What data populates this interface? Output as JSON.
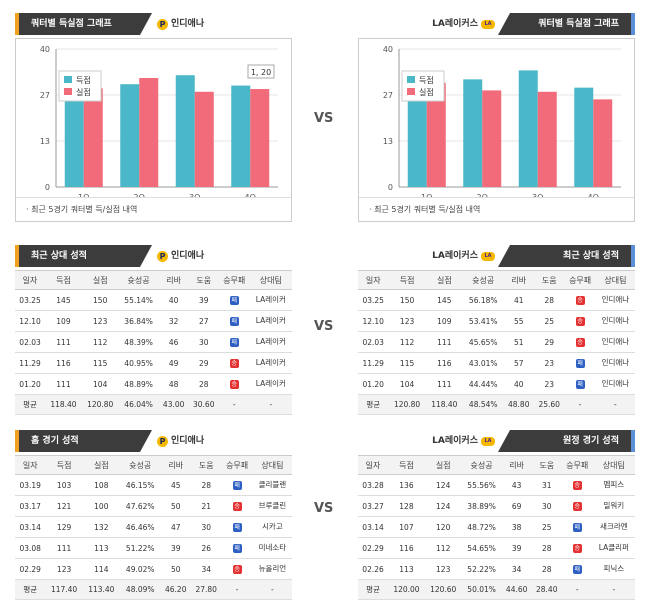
{
  "vs_label": "VS",
  "colors": {
    "score": "#4ab8c8",
    "lost": "#f26b7a",
    "lose_badge": "#2e5fc2",
    "win_badge": "#e43232"
  },
  "charts": {
    "left": {
      "title": "쿼터별 득실점 그래프",
      "team": "인디애나",
      "note": "·  최근 5경기 쿼터별 득/실점 내역",
      "tooltip": "1, 20",
      "chart_data": {
        "type": "bar",
        "categories": [
          "1Q",
          "2Q",
          "3Q",
          "4Q"
        ],
        "ylim": [
          0,
          40
        ],
        "yticks": [
          "40",
          "27",
          "13",
          "0"
        ],
        "series": [
          {
            "name": "득점",
            "values": [
              31.2,
              29.8,
              32.4,
              29.4
            ]
          },
          {
            "name": "실점",
            "values": [
              28.6,
              31.6,
              27.6,
              28.4
            ]
          }
        ]
      }
    },
    "right": {
      "title": "쿼터별 득실점 그래프",
      "team": "LA레이커스",
      "note": "·  최근 5경기 쿼터별 득/실점 내역",
      "chart_data": {
        "type": "bar",
        "categories": [
          "1Q",
          "2Q",
          "3Q",
          "4Q"
        ],
        "ylim": [
          0,
          40
        ],
        "yticks": [
          "40",
          "27",
          "13",
          "0"
        ],
        "series": [
          {
            "name": "득점",
            "values": [
              29.6,
              31.2,
              33.8,
              28.8
            ]
          },
          {
            "name": "실점",
            "values": [
              30.2,
              28.0,
              27.6,
              25.4
            ]
          }
        ]
      }
    }
  },
  "columns": [
    "일자",
    "득점",
    "실점",
    "슛성공",
    "리바",
    "도움",
    "승무패",
    "상대팀"
  ],
  "sections": {
    "recent_left": {
      "title": "최근 상대 성적",
      "team": "인디애나",
      "rows": [
        [
          "03.25",
          "145",
          "150",
          "55.14%",
          "40",
          "39",
          "패",
          "LA레이커"
        ],
        [
          "12.10",
          "109",
          "123",
          "36.84%",
          "32",
          "27",
          "패",
          "LA레이커"
        ],
        [
          "02.03",
          "111",
          "112",
          "48.39%",
          "46",
          "30",
          "패",
          "LA레이커"
        ],
        [
          "11.29",
          "116",
          "115",
          "40.95%",
          "49",
          "29",
          "승",
          "LA레이커"
        ],
        [
          "01.20",
          "111",
          "104",
          "48.89%",
          "48",
          "28",
          "승",
          "LA레이커"
        ]
      ],
      "avg": [
        "평균",
        "118.40",
        "120.80",
        "46.04%",
        "43.00",
        "30.60",
        "-",
        "-"
      ]
    },
    "recent_right": {
      "title": "최근 상대 성적",
      "team": "LA레이커스",
      "rows": [
        [
          "03.25",
          "150",
          "145",
          "56.18%",
          "41",
          "28",
          "승",
          "인디애나"
        ],
        [
          "12.10",
          "123",
          "109",
          "53.41%",
          "55",
          "25",
          "승",
          "인디애나"
        ],
        [
          "02.03",
          "112",
          "111",
          "45.65%",
          "51",
          "29",
          "승",
          "인디애나"
        ],
        [
          "11.29",
          "115",
          "116",
          "43.01%",
          "57",
          "23",
          "패",
          "인디애나"
        ],
        [
          "01.20",
          "104",
          "111",
          "44.44%",
          "40",
          "23",
          "패",
          "인디애나"
        ]
      ],
      "avg": [
        "평균",
        "120.80",
        "118.40",
        "48.54%",
        "48.80",
        "25.60",
        "-",
        "-"
      ]
    },
    "home_left": {
      "title": "홈 경기 성적",
      "team": "인디애나",
      "rows": [
        [
          "03.19",
          "103",
          "108",
          "46.15%",
          "45",
          "28",
          "패",
          "클리블랜"
        ],
        [
          "03.17",
          "121",
          "100",
          "47.62%",
          "50",
          "21",
          "승",
          "브루클린"
        ],
        [
          "03.14",
          "129",
          "132",
          "46.46%",
          "47",
          "30",
          "패",
          "시카고"
        ],
        [
          "03.08",
          "111",
          "113",
          "51.22%",
          "39",
          "26",
          "패",
          "미네소타"
        ],
        [
          "02.29",
          "123",
          "114",
          "49.02%",
          "50",
          "34",
          "승",
          "뉴올리언"
        ]
      ],
      "avg": [
        "평균",
        "117.40",
        "113.40",
        "48.09%",
        "46.20",
        "27.80",
        "-",
        "-"
      ]
    },
    "away_right": {
      "title": "원정 경기 성적",
      "team": "LA레이커스",
      "rows": [
        [
          "03.28",
          "136",
          "124",
          "55.56%",
          "43",
          "31",
          "승",
          "멤피스"
        ],
        [
          "03.27",
          "128",
          "124",
          "38.89%",
          "69",
          "30",
          "승",
          "밀워키"
        ],
        [
          "03.14",
          "107",
          "120",
          "48.72%",
          "38",
          "25",
          "패",
          "새크라멘"
        ],
        [
          "02.29",
          "116",
          "112",
          "54.65%",
          "39",
          "28",
          "승",
          "LA클리퍼"
        ],
        [
          "02.26",
          "113",
          "123",
          "52.22%",
          "34",
          "28",
          "패",
          "피닉스"
        ]
      ],
      "avg": [
        "평균",
        "120.00",
        "120.60",
        "50.01%",
        "44.60",
        "28.40",
        "-",
        "-"
      ]
    }
  }
}
